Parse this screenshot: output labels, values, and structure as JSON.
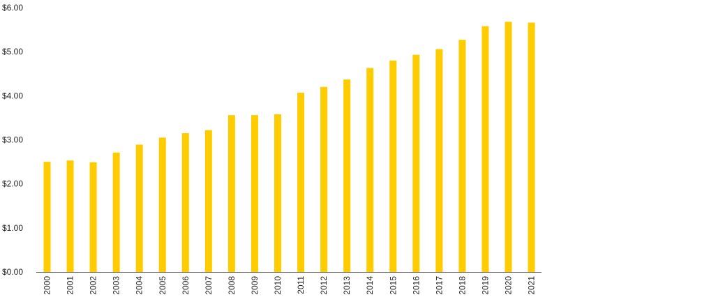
{
  "chart_data": {
    "type": "bar",
    "categories": [
      "2000",
      "2001",
      "2002",
      "2003",
      "2004",
      "2005",
      "2006",
      "2007",
      "2008",
      "2009",
      "2010",
      "2011",
      "2012",
      "2013",
      "2014",
      "2015",
      "2016",
      "2017",
      "2018",
      "2019",
      "2020",
      "2021"
    ],
    "values": [
      2.5,
      2.53,
      2.49,
      2.71,
      2.89,
      3.05,
      3.15,
      3.22,
      3.56,
      3.56,
      3.58,
      4.07,
      4.2,
      4.37,
      4.63,
      4.8,
      4.93,
      5.06,
      5.27,
      5.58,
      5.68,
      5.66
    ],
    "y_ticks": [
      "$0.00",
      "$1.00",
      "$2.00",
      "$3.00",
      "$4.00",
      "$5.00",
      "$6.00"
    ],
    "ylim": [
      0,
      6
    ],
    "bar_color": "#FFCC00",
    "axis_color": "#555555",
    "grid": false,
    "legend": "none"
  }
}
